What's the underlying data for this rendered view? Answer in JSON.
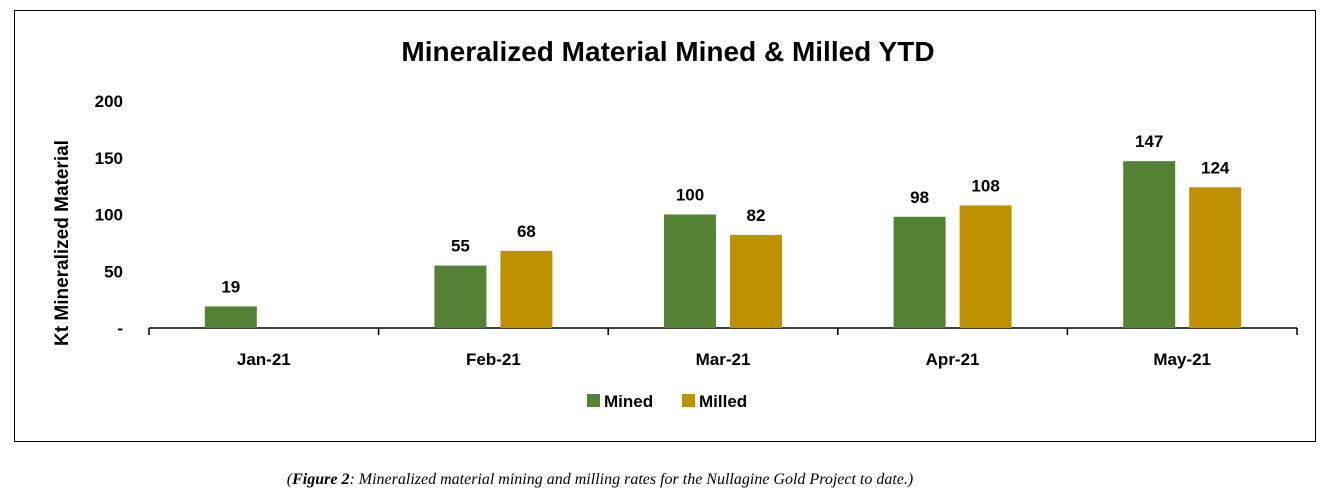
{
  "chart_data": {
    "type": "bar",
    "title": "Mineralized Material Mined & Milled YTD",
    "xlabel": "",
    "ylabel": "Kt Mineralized Material",
    "ylim": [
      0,
      200
    ],
    "yticks": [
      0,
      50,
      100,
      150,
      200
    ],
    "ytick_labels": [
      "-",
      "50",
      "100",
      "150",
      "200"
    ],
    "categories": [
      "Jan-21",
      "Feb-21",
      "Mar-21",
      "Apr-21",
      "May-21"
    ],
    "series": [
      {
        "name": "Mined",
        "color": "#548235",
        "values": [
          19,
          55,
          100,
          98,
          147
        ]
      },
      {
        "name": "Milled",
        "color": "#BF9000",
        "values": [
          null,
          68,
          82,
          108,
          124
        ]
      }
    ],
    "legend": "bottom-center",
    "grid": false
  },
  "caption": {
    "open": "(",
    "label": "Figure 2",
    "text": ": Mineralized material mining and milling rates for the Nullagine Gold Project to date.)"
  }
}
